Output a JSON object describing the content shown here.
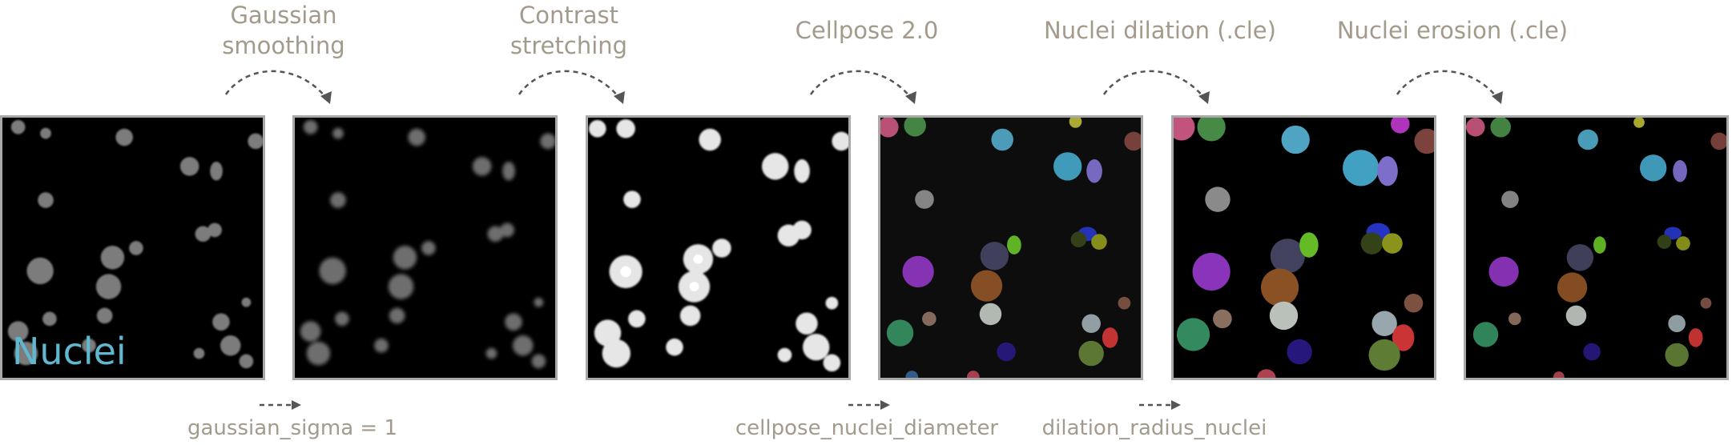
{
  "steps": [
    {
      "label_line1": "Gaussian",
      "label_line2": "smoothing"
    },
    {
      "label_line1": "Contrast",
      "label_line2": "stretching"
    },
    {
      "label_line1": "Cellpose 2.0",
      "label_line2": ""
    },
    {
      "label_line1": "Nuclei dilation (.cle)",
      "label_line2": ""
    },
    {
      "label_line1": "Nuclei erosion (.cle)",
      "label_line2": ""
    }
  ],
  "params": [
    {
      "text": "gaussian_sigma = 1"
    },
    {
      "text": "cellpose_nuclei_diameter"
    },
    {
      "text": "dilation_radius_nuclei"
    }
  ],
  "input_label": "Nuclei",
  "colors": {
    "text": "#a49a8c",
    "nuclei_label": "#5fb8d0",
    "frame": "#a9a9a9",
    "arrow": "#555555"
  },
  "icons": [
    "dashed-curved-arrow-icon",
    "dashed-straight-arrow-icon"
  ]
}
